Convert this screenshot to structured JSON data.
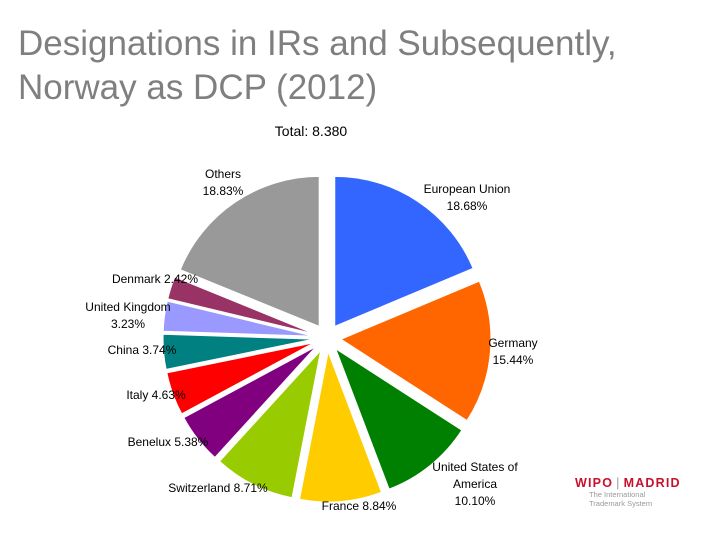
{
  "slide": {
    "title_line1": "Designations in IRs and Subsequently,",
    "title_line2": "Norway as DCP (2012)"
  },
  "chart_data": {
    "type": "pie",
    "title": "Total: 8.380",
    "slices": [
      {
        "label_lines": [
          "European Union",
          "18.68%"
        ],
        "value": 18.68,
        "color": "#3366ff"
      },
      {
        "label_lines": [
          "Germany",
          "15.44%"
        ],
        "value": 15.44,
        "color": "#ff6600"
      },
      {
        "label_lines": [
          "United States of",
          "America",
          "10.10%"
        ],
        "value": 10.1,
        "color": "#008000"
      },
      {
        "label_lines": [
          "France 8.84%"
        ],
        "value": 8.84,
        "color": "#ffcc00"
      },
      {
        "label_lines": [
          "Switzerland 8.71%"
        ],
        "value": 8.71,
        "color": "#99cc00"
      },
      {
        "label_lines": [
          "Benelux 5.38%"
        ],
        "value": 5.38,
        "color": "#800080"
      },
      {
        "label_lines": [
          "Italy 4.63%"
        ],
        "value": 4.63,
        "color": "#ff0000"
      },
      {
        "label_lines": [
          "China 3.74%"
        ],
        "value": 3.74,
        "color": "#008080"
      },
      {
        "label_lines": [
          "United Kingdom",
          "3.23%"
        ],
        "value": 3.23,
        "color": "#9999ff"
      },
      {
        "label_lines": [
          "Denmark 2.42%"
        ],
        "value": 2.42,
        "color": "#993366"
      },
      {
        "label_lines": [
          "Others",
          "18.83%"
        ],
        "value": 18.83,
        "color": "#999999"
      }
    ]
  },
  "logo": {
    "brand_left": "WIPO",
    "separator": "|",
    "brand_right": "MADRID",
    "sub_line1": "The International",
    "sub_line2": "Trademark System"
  }
}
